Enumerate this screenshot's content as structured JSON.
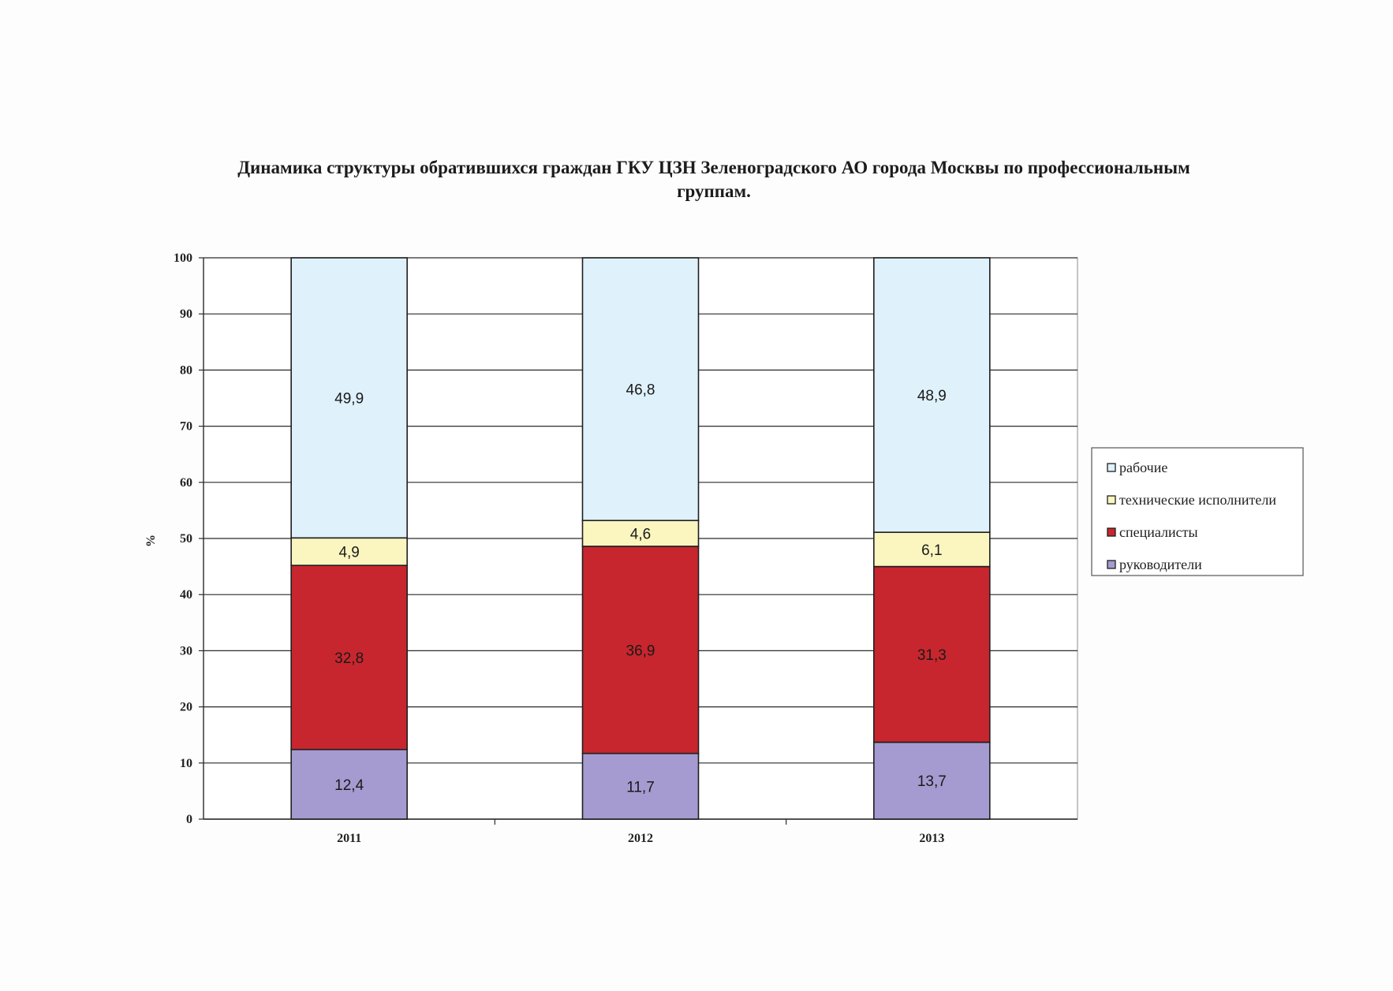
{
  "chart_data": {
    "type": "bar",
    "stacked": true,
    "title": "Динамика структуры обратившихся граждан ГКУ ЦЗН Зеленоградского АО города Москвы по профессиональным группам.",
    "xlabel": "",
    "ylabel": "%",
    "ylim": [
      0,
      100
    ],
    "yticks": [
      0,
      10,
      20,
      30,
      40,
      50,
      60,
      70,
      80,
      90,
      100
    ],
    "grid": true,
    "legend_position": "right",
    "categories": [
      "2011",
      "2012",
      "2013"
    ],
    "series": [
      {
        "name": "руководители",
        "values": [
          12.4,
          11.7,
          13.7
        ],
        "labels": [
          "12,4",
          "11,7",
          "13,7"
        ],
        "color": "#a59bd0"
      },
      {
        "name": "специалисты",
        "values": [
          32.8,
          36.9,
          31.3
        ],
        "labels": [
          "32,8",
          "36,9",
          "31,3"
        ],
        "color": "#c8262e"
      },
      {
        "name": "технические исполнители",
        "values": [
          4.9,
          4.6,
          6.1
        ],
        "labels": [
          "4,9",
          "4,6",
          "6,1"
        ],
        "color": "#fbf6bf"
      },
      {
        "name": "рабочие",
        "values": [
          49.9,
          46.8,
          48.9
        ],
        "labels": [
          "49,9",
          "46,8",
          "48,9"
        ],
        "color": "#dff1fb"
      }
    ],
    "legend_order": [
      "рабочие",
      "технические исполнители",
      "специалисты",
      "руководители"
    ]
  }
}
